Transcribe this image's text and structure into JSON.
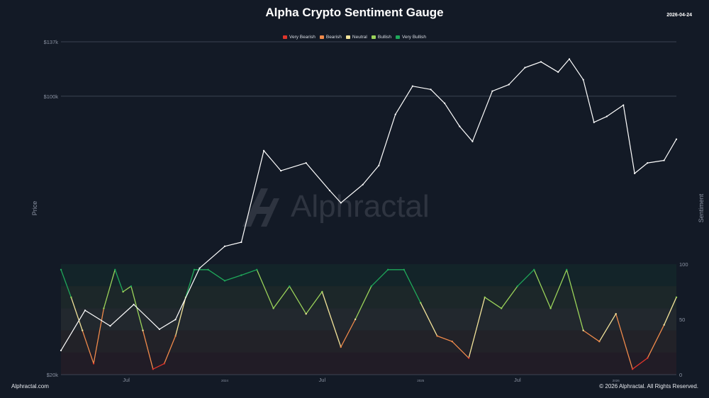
{
  "header": {
    "title": "Alpha Crypto Sentiment Gauge",
    "date": "2026-04-24"
  },
  "footer": {
    "brand": "Alphractal.com",
    "copyright": "© 2026 Alphractal. All Rights Reserved."
  },
  "watermark": {
    "text": "Alphractal"
  },
  "legend": [
    {
      "label": "Very Bearish",
      "color": "#e0352b"
    },
    {
      "label": "Bearish",
      "color": "#f08a4b"
    },
    {
      "label": "Neutral",
      "color": "#f2e39a"
    },
    {
      "label": "Bullish",
      "color": "#9bd35a"
    },
    {
      "label": "Very Bullish",
      "color": "#1fa85a"
    }
  ],
  "chart_data": {
    "type": "line",
    "title": "Alpha Crypto Sentiment Gauge",
    "ylabel": "Price",
    "y2label": "Sentiment",
    "price_axis": {
      "ticks": [
        "$137k",
        "$100k",
        "$20k"
      ],
      "scale": "log",
      "range": [
        20000,
        137000
      ]
    },
    "sentiment_axis": {
      "ticks": [
        "100",
        "50",
        "0"
      ],
      "range": [
        0,
        100
      ]
    },
    "x_ticks": [
      "Jul",
      "2024",
      "Jul",
      "2025",
      "Jul",
      "2026"
    ],
    "x_tick_dates": [
      "2023-07-01",
      "2024-01-01",
      "2024-07-01",
      "2025-01-01",
      "2025-07-01",
      "2026-01-01"
    ],
    "x_range": [
      "2023-03-01",
      "2026-04-24"
    ],
    "grid": false,
    "legend_position": "top-center",
    "price_series": {
      "name": "Price",
      "color": "#ffffff",
      "dates": [
        "2023-03-01",
        "2023-04-15",
        "2023-06-01",
        "2023-07-15",
        "2023-09-01",
        "2023-10-01",
        "2023-11-15",
        "2024-01-01",
        "2024-02-01",
        "2024-03-14",
        "2024-04-15",
        "2024-06-01",
        "2024-07-15",
        "2024-08-05",
        "2024-09-15",
        "2024-10-15",
        "2024-11-15",
        "2024-12-17",
        "2025-01-20",
        "2025-02-15",
        "2025-03-15",
        "2025-04-08",
        "2025-05-15",
        "2025-06-15",
        "2025-07-15",
        "2025-08-14",
        "2025-09-15",
        "2025-10-06",
        "2025-11-01",
        "2025-11-21",
        "2025-12-15",
        "2026-01-15",
        "2026-02-05",
        "2026-03-01",
        "2026-04-01",
        "2026-04-24"
      ],
      "values": [
        23000,
        29000,
        26500,
        30000,
        26000,
        27500,
        37000,
        42000,
        43000,
        73000,
        65000,
        68000,
        58000,
        54000,
        60000,
        67000,
        90000,
        106000,
        104000,
        96000,
        84000,
        77000,
        103000,
        107000,
        118000,
        122000,
        115000,
        124000,
        110000,
        86000,
        89000,
        95000,
        64000,
        68000,
        69000,
        78000
      ]
    },
    "sentiment_series": {
      "name": "Sentiment",
      "dates": [
        "2023-03-01",
        "2023-03-20",
        "2023-04-10",
        "2023-05-01",
        "2023-05-20",
        "2023-06-10",
        "2023-06-25",
        "2023-07-10",
        "2023-08-01",
        "2023-08-20",
        "2023-09-10",
        "2023-10-01",
        "2023-10-20",
        "2023-11-05",
        "2023-12-01",
        "2024-01-01",
        "2024-02-01",
        "2024-03-01",
        "2024-04-01",
        "2024-05-01",
        "2024-06-01",
        "2024-07-01",
        "2024-08-05",
        "2024-09-01",
        "2024-10-01",
        "2024-11-01",
        "2024-12-01",
        "2025-01-01",
        "2025-02-01",
        "2025-03-01",
        "2025-04-01",
        "2025-05-01",
        "2025-06-01",
        "2025-07-01",
        "2025-08-01",
        "2025-09-01",
        "2025-10-01",
        "2025-11-01",
        "2025-12-01",
        "2026-01-01",
        "2026-02-01",
        "2026-03-01",
        "2026-04-01",
        "2026-04-24"
      ],
      "values": [
        95,
        70,
        40,
        10,
        60,
        95,
        75,
        80,
        40,
        5,
        10,
        35,
        70,
        95,
        95,
        85,
        90,
        95,
        60,
        80,
        55,
        75,
        25,
        50,
        80,
        95,
        95,
        65,
        35,
        30,
        15,
        70,
        60,
        80,
        95,
        60,
        95,
        40,
        30,
        55,
        5,
        15,
        45,
        70
      ]
    }
  }
}
